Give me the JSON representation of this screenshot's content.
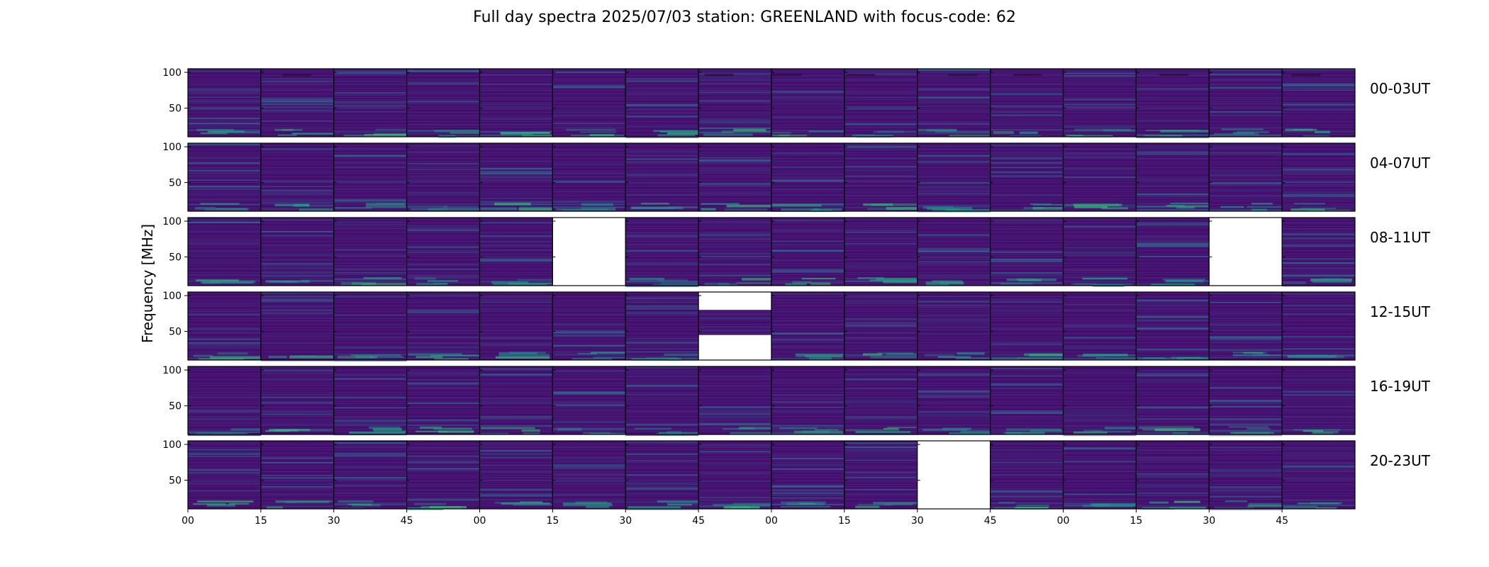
{
  "chart_data": {
    "type": "heatmap",
    "title": "Full day spectra 2025/07/03 station: GREENLAND with focus-code: 62",
    "ylabel": "Frequency [MHz]",
    "colormap": "viridis",
    "ylim": [
      10,
      105
    ],
    "yticks": [
      50,
      100
    ],
    "xtick_labels": [
      "00",
      "15",
      "30",
      "45",
      "00",
      "15",
      "30",
      "45",
      "00",
      "15",
      "30",
      "45",
      "00",
      "15",
      "30",
      "45"
    ],
    "columns_per_row": 16,
    "rows": [
      {
        "label": "00-03UT",
        "missing_panels": []
      },
      {
        "label": "04-07UT",
        "missing_panels": []
      },
      {
        "label": "08-11UT",
        "missing_panels": [
          5,
          14
        ]
      },
      {
        "label": "12-15UT",
        "missing_panels": [],
        "partial_panels": [
          {
            "panel": 7,
            "missing_mhz": [
              [
                80,
                105
              ],
              [
                10,
                45
              ]
            ]
          }
        ]
      },
      {
        "label": "16-19UT",
        "missing_panels": []
      },
      {
        "label": "20-23UT",
        "missing_panels": [
          10
        ]
      }
    ],
    "colors": {
      "background": "#440f6e",
      "bands": [
        "#472a7a",
        "#3b2f7e",
        "#2e6a8e",
        "#25858e",
        "#1fa187",
        "#35b779"
      ],
      "border": "#000000"
    }
  }
}
